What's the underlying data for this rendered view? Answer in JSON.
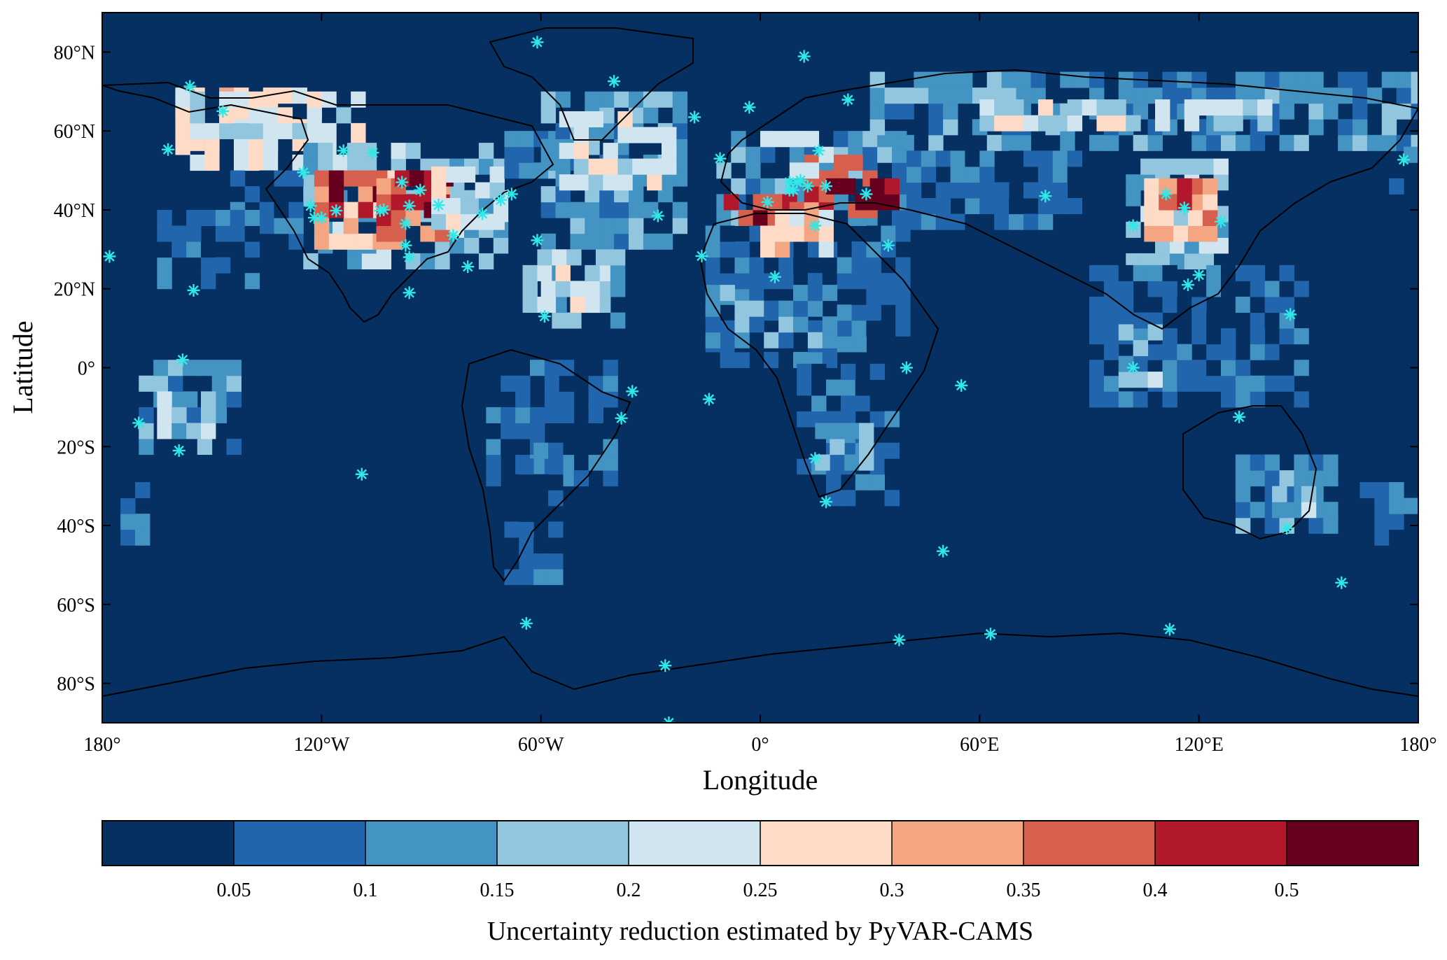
{
  "map": {
    "xlabel": "Longitude",
    "ylabel": "Latitude",
    "lon_ticks": [
      {
        "value": -180,
        "label": "180°"
      },
      {
        "value": -120,
        "label": "120°W"
      },
      {
        "value": -60,
        "label": "60°W"
      },
      {
        "value": 0,
        "label": "0°"
      },
      {
        "value": 60,
        "label": "60°E"
      },
      {
        "value": 120,
        "label": "120°E"
      },
      {
        "value": 180,
        "label": "180°"
      }
    ],
    "lat_ticks": [
      {
        "value": 80,
        "label": "80°N"
      },
      {
        "value": 60,
        "label": "60°N"
      },
      {
        "value": 40,
        "label": "40°N"
      },
      {
        "value": 20,
        "label": "20°N"
      },
      {
        "value": 0,
        "label": "0°"
      },
      {
        "value": -20,
        "label": "20°S"
      },
      {
        "value": -40,
        "label": "40°S"
      },
      {
        "value": -60,
        "label": "60°S"
      },
      {
        "value": -80,
        "label": "80°S"
      }
    ],
    "lon_range": [
      -180,
      180
    ],
    "lat_range": [
      -90,
      90
    ],
    "background_color": "#053061",
    "coastline_color": "#000000",
    "station_color": "#2fe8e8",
    "station_marker": "asterisk"
  },
  "colorbar": {
    "title": "Uncertainty reduction estimated by PyVAR-CAMS",
    "colors": [
      "#053061",
      "#2166ac",
      "#4393c3",
      "#92c5de",
      "#d1e5f0",
      "#fddbc7",
      "#f4a582",
      "#d6604d",
      "#b2182b",
      "#67001f"
    ],
    "tick_labels": [
      "0.05",
      "0.1",
      "0.15",
      "0.2",
      "0.25",
      "0.3",
      "0.35",
      "0.4",
      "0.5"
    ]
  },
  "regions": [
    {
      "lon": [
        -160,
        -120
      ],
      "lat": [
        55,
        70
      ],
      "level": 5
    },
    {
      "lon": [
        -160,
        -110
      ],
      "lat": [
        50,
        68
      ],
      "level": 4
    },
    {
      "lon": [
        -125,
        -70
      ],
      "lat": [
        25,
        55
      ],
      "level": 3
    },
    {
      "lon": [
        -122,
        -95
      ],
      "lat": [
        30,
        50
      ],
      "level": 6
    },
    {
      "lon": [
        -118,
        -105
      ],
      "lat": [
        38,
        50
      ],
      "level": 8
    },
    {
      "lon": [
        -105,
        -88
      ],
      "lat": [
        32,
        46
      ],
      "level": 7
    },
    {
      "lon": [
        -100,
        -85
      ],
      "lat": [
        38,
        48
      ],
      "level": 9
    },
    {
      "lon": [
        -90,
        -70
      ],
      "lat": [
        35,
        48
      ],
      "level": 4
    },
    {
      "lon": [
        -145,
        -125
      ],
      "lat": [
        30,
        48
      ],
      "level": 1
    },
    {
      "lon": [
        -165,
        -140
      ],
      "lat": [
        20,
        40
      ],
      "level": 1
    },
    {
      "lon": [
        -70,
        -55
      ],
      "lat": [
        40,
        60
      ],
      "level": 2
    },
    {
      "lon": [
        -60,
        -20
      ],
      "lat": [
        30,
        70
      ],
      "level": 2
    },
    {
      "lon": [
        -55,
        -25
      ],
      "lat": [
        45,
        65
      ],
      "level": 4
    },
    {
      "lon": [
        -65,
        -40
      ],
      "lat": [
        10,
        30
      ],
      "level": 3
    },
    {
      "lon": [
        -60,
        -45
      ],
      "lat": [
        14,
        24
      ],
      "level": 4
    },
    {
      "lon": [
        -170,
        -145
      ],
      "lat": [
        -22,
        0
      ],
      "level": 2
    },
    {
      "lon": [
        -165,
        -150
      ],
      "lat": [
        -18,
        -8
      ],
      "level": 3
    },
    {
      "lon": [
        -175,
        -168
      ],
      "lat": [
        -45,
        -30
      ],
      "level": 1
    },
    {
      "lon": [
        -75,
        -40
      ],
      "lat": [
        -30,
        0
      ],
      "level": 1
    },
    {
      "lon": [
        -70,
        -55
      ],
      "lat": [
        -55,
        -20
      ],
      "level": 1
    },
    {
      "lon": [
        -12,
        40
      ],
      "lat": [
        36,
        60
      ],
      "level": 2
    },
    {
      "lon": [
        -10,
        10
      ],
      "lat": [
        36,
        48
      ],
      "level": 8
    },
    {
      "lon": [
        8,
        32
      ],
      "lat": [
        38,
        52
      ],
      "level": 7
    },
    {
      "lon": [
        18,
        35
      ],
      "lat": [
        40,
        48
      ],
      "level": 9
    },
    {
      "lon": [
        0,
        20
      ],
      "lat": [
        48,
        58
      ],
      "level": 4
    },
    {
      "lon": [
        -15,
        40
      ],
      "lat": [
        0,
        35
      ],
      "level": 1
    },
    {
      "lon": [
        -15,
        20
      ],
      "lat": [
        5,
        20
      ],
      "level": 2
    },
    {
      "lon": [
        0,
        20
      ],
      "lat": [
        28,
        38
      ],
      "level": 5
    },
    {
      "lon": [
        10,
        35
      ],
      "lat": [
        -35,
        0
      ],
      "level": 1
    },
    {
      "lon": [
        15,
        30
      ],
      "lat": [
        -30,
        -15
      ],
      "level": 3
    },
    {
      "lon": [
        30,
        180
      ],
      "lat": [
        55,
        72
      ],
      "level": 2
    },
    {
      "lon": [
        60,
        140
      ],
      "lat": [
        60,
        68
      ],
      "level": 4
    },
    {
      "lon": [
        40,
        85
      ],
      "lat": [
        35,
        55
      ],
      "level": 1
    },
    {
      "lon": [
        100,
        125
      ],
      "lat": [
        25,
        50
      ],
      "level": 3
    },
    {
      "lon": [
        105,
        122
      ],
      "lat": [
        32,
        45
      ],
      "level": 6
    },
    {
      "lon": [
        110,
        118
      ],
      "lat": [
        40,
        46
      ],
      "level": 8
    },
    {
      "lon": [
        90,
        150
      ],
      "lat": [
        -10,
        25
      ],
      "level": 1
    },
    {
      "lon": [
        98,
        110
      ],
      "lat": [
        -5,
        8
      ],
      "level": 3
    },
    {
      "lon": [
        130,
        155
      ],
      "lat": [
        -42,
        -25
      ],
      "level": 2
    },
    {
      "lon": [
        140,
        152
      ],
      "lat": [
        -38,
        -30
      ],
      "level": 3
    },
    {
      "lon": [
        160,
        180
      ],
      "lat": [
        -45,
        -30
      ],
      "level": 1
    },
    {
      "lon": [
        172,
        180
      ],
      "lat": [
        40,
        60
      ],
      "level": 1
    }
  ],
  "stations": [
    [
      -61,
      82.5
    ],
    [
      -156,
      71.3
    ],
    [
      -147,
      65
    ],
    [
      -162,
      55.3
    ],
    [
      -40,
      72.6
    ],
    [
      12,
      78.9
    ],
    [
      24,
      67.9
    ],
    [
      16,
      55
    ],
    [
      -18,
      63.5
    ],
    [
      -3,
      66
    ],
    [
      -11,
      53
    ],
    [
      -125,
      49.5
    ],
    [
      -123,
      41
    ],
    [
      -122,
      38
    ],
    [
      -120,
      38
    ],
    [
      -116,
      39.8
    ],
    [
      -114,
      55
    ],
    [
      -106,
      54.5
    ],
    [
      -104,
      39.8
    ],
    [
      -103,
      40
    ],
    [
      -98,
      47
    ],
    [
      -97,
      36.5
    ],
    [
      -97,
      31
    ],
    [
      -96,
      28
    ],
    [
      -96,
      41
    ],
    [
      -93,
      45
    ],
    [
      -88,
      41.2
    ],
    [
      -84,
      33.5
    ],
    [
      -80,
      25.6
    ],
    [
      -76,
      39
    ],
    [
      -71,
      42.5
    ],
    [
      -68,
      44
    ],
    [
      -61,
      32.3
    ],
    [
      -59,
      13
    ],
    [
      -96,
      19
    ],
    [
      -155,
      19.6
    ],
    [
      -158,
      2
    ],
    [
      -170,
      -14
    ],
    [
      -159,
      -21
    ],
    [
      -109,
      -27
    ],
    [
      -35,
      -6
    ],
    [
      -38,
      -12.8
    ],
    [
      -14,
      -8
    ],
    [
      -28,
      38.5
    ],
    [
      -16,
      28.3
    ],
    [
      4,
      23
    ],
    [
      2,
      42
    ],
    [
      8,
      47
    ],
    [
      9,
      45
    ],
    [
      11,
      47.5
    ],
    [
      13,
      46
    ],
    [
      15,
      36
    ],
    [
      18,
      46
    ],
    [
      29,
      44
    ],
    [
      35,
      31
    ],
    [
      40,
      0
    ],
    [
      38,
      -69
    ],
    [
      55,
      -4.5
    ],
    [
      50,
      -46.5
    ],
    [
      18,
      -34
    ],
    [
      15,
      -23
    ],
    [
      63,
      -67.5
    ],
    [
      78,
      43.5
    ],
    [
      102,
      0
    ],
    [
      102,
      36
    ],
    [
      111,
      44
    ],
    [
      116,
      40.5
    ],
    [
      117,
      21
    ],
    [
      120,
      23.5
    ],
    [
      126,
      37
    ],
    [
      131,
      -12.5
    ],
    [
      145,
      13.5
    ],
    [
      144,
      -40.7
    ],
    [
      159,
      -54.5
    ],
    [
      176,
      52.7
    ],
    [
      112,
      -66.3
    ],
    [
      -26,
      -75.5
    ],
    [
      -25,
      -90
    ],
    [
      -64,
      -64.8
    ],
    [
      -178,
      28.2
    ],
    [
      10,
      47
    ],
    [
      8,
      45
    ]
  ]
}
